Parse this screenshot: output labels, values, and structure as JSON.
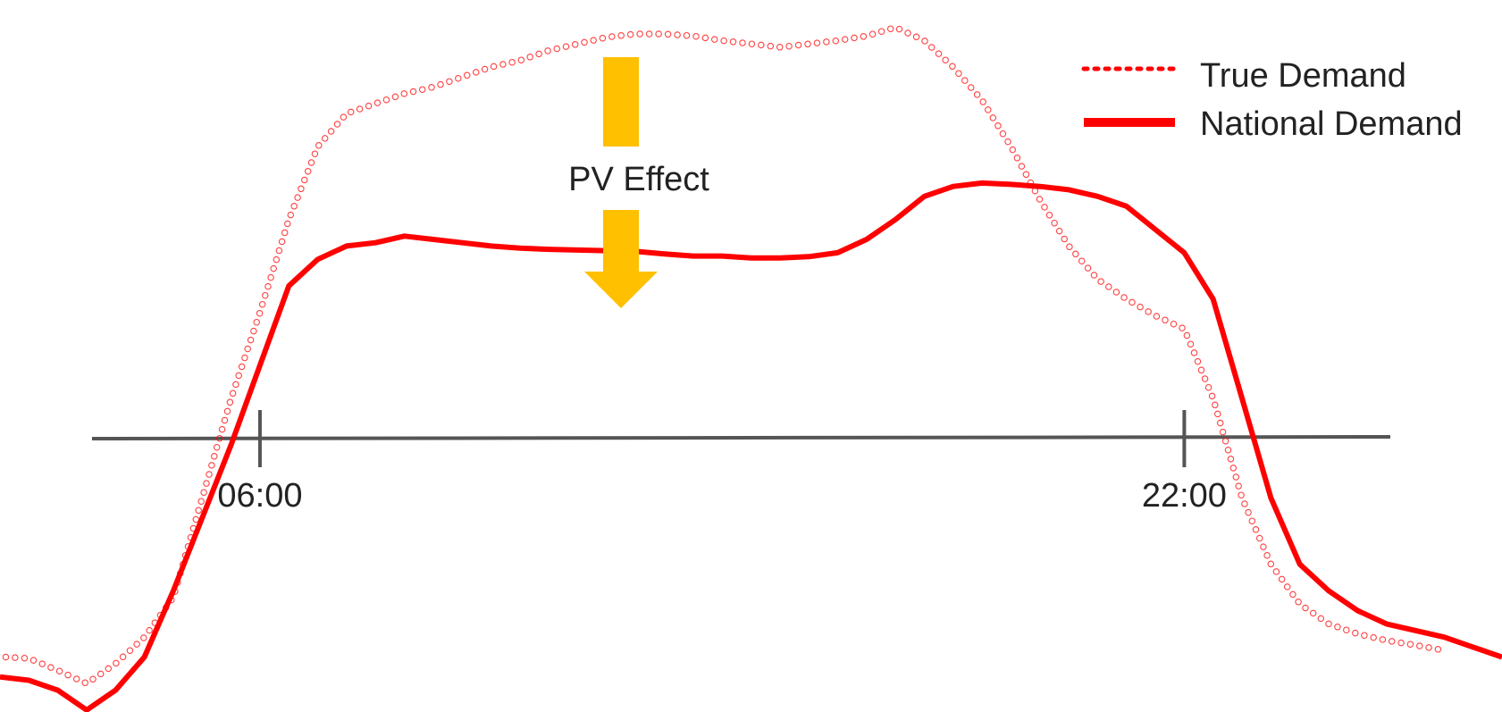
{
  "chart_data": {
    "type": "line",
    "x_unit": "hour",
    "x_ticks": [
      {
        "label": "06:00",
        "x": 6.0
      },
      {
        "label": "22:00",
        "x": 22.0
      }
    ],
    "xlim": [
      1.5,
      27.5
    ],
    "ylim": [
      0.0,
      1.0
    ],
    "grid": false,
    "legend_position": "top-right",
    "annotation": {
      "label": "PV Effect",
      "x": 15.0
    },
    "series": [
      {
        "name": "True Demand",
        "style": "dotted",
        "color": "#ff0000",
        "points": [
          [
            1.6,
            0.06
          ],
          [
            2.0,
            0.058
          ],
          [
            2.5,
            0.04
          ],
          [
            3.0,
            0.02
          ],
          [
            3.5,
            0.05
          ],
          [
            4.0,
            0.09
          ],
          [
            4.5,
            0.15
          ],
          [
            5.0,
            0.3
          ],
          [
            5.5,
            0.45
          ],
          [
            6.0,
            0.58
          ],
          [
            6.5,
            0.72
          ],
          [
            7.0,
            0.83
          ],
          [
            7.5,
            0.88
          ],
          [
            8.0,
            0.895
          ],
          [
            8.5,
            0.91
          ],
          [
            9.0,
            0.92
          ],
          [
            9.5,
            0.935
          ],
          [
            10.0,
            0.95
          ],
          [
            10.5,
            0.96
          ],
          [
            11.0,
            0.975
          ],
          [
            11.5,
            0.985
          ],
          [
            12.0,
            0.995
          ],
          [
            12.5,
            1.0
          ],
          [
            13.0,
            1.0
          ],
          [
            13.5,
            0.997
          ],
          [
            14.0,
            0.99
          ],
          [
            14.5,
            0.985
          ],
          [
            15.0,
            0.98
          ],
          [
            15.5,
            0.985
          ],
          [
            16.0,
            0.99
          ],
          [
            16.5,
            0.997
          ],
          [
            17.0,
            1.01
          ],
          [
            17.5,
            0.99
          ],
          [
            18.0,
            0.95
          ],
          [
            18.5,
            0.9
          ],
          [
            19.0,
            0.83
          ],
          [
            19.5,
            0.75
          ],
          [
            20.0,
            0.68
          ],
          [
            20.5,
            0.63
          ],
          [
            21.0,
            0.6
          ],
          [
            21.5,
            0.575
          ],
          [
            22.0,
            0.555
          ],
          [
            22.5,
            0.45
          ],
          [
            23.0,
            0.3
          ],
          [
            23.5,
            0.2
          ],
          [
            24.0,
            0.14
          ],
          [
            24.5,
            0.11
          ],
          [
            25.0,
            0.095
          ],
          [
            25.5,
            0.085
          ],
          [
            26.0,
            0.078
          ],
          [
            26.5,
            0.07
          ]
        ]
      },
      {
        "name": "National Demand",
        "style": "solid",
        "color": "#ff0000",
        "points": [
          [
            1.5,
            0.03
          ],
          [
            2.0,
            0.025
          ],
          [
            2.5,
            0.01
          ],
          [
            3.0,
            -0.02
          ],
          [
            3.5,
            0.01
          ],
          [
            4.0,
            0.06
          ],
          [
            4.5,
            0.16
          ],
          [
            5.0,
            0.27
          ],
          [
            5.5,
            0.38
          ],
          [
            6.0,
            0.5
          ],
          [
            6.5,
            0.62
          ],
          [
            7.0,
            0.66
          ],
          [
            7.5,
            0.68
          ],
          [
            8.0,
            0.685
          ],
          [
            8.5,
            0.695
          ],
          [
            9.0,
            0.69
          ],
          [
            9.5,
            0.685
          ],
          [
            10.0,
            0.68
          ],
          [
            10.5,
            0.677
          ],
          [
            11.0,
            0.675
          ],
          [
            11.5,
            0.674
          ],
          [
            12.0,
            0.673
          ],
          [
            12.5,
            0.672
          ],
          [
            13.0,
            0.668
          ],
          [
            13.5,
            0.665
          ],
          [
            14.0,
            0.665
          ],
          [
            14.5,
            0.662
          ],
          [
            15.0,
            0.662
          ],
          [
            15.5,
            0.664
          ],
          [
            16.0,
            0.67
          ],
          [
            16.5,
            0.69
          ],
          [
            17.0,
            0.72
          ],
          [
            17.5,
            0.755
          ],
          [
            18.0,
            0.77
          ],
          [
            18.5,
            0.775
          ],
          [
            19.0,
            0.773
          ],
          [
            19.5,
            0.77
          ],
          [
            20.0,
            0.765
          ],
          [
            20.5,
            0.755
          ],
          [
            21.0,
            0.74
          ],
          [
            21.5,
            0.705
          ],
          [
            22.0,
            0.67
          ],
          [
            22.5,
            0.6
          ],
          [
            23.0,
            0.45
          ],
          [
            23.5,
            0.3
          ],
          [
            24.0,
            0.2
          ],
          [
            24.5,
            0.16
          ],
          [
            25.0,
            0.13
          ],
          [
            25.5,
            0.11
          ],
          [
            26.0,
            0.1
          ],
          [
            26.5,
            0.09
          ],
          [
            27.0,
            0.075
          ],
          [
            27.5,
            0.06
          ]
        ]
      }
    ]
  }
}
